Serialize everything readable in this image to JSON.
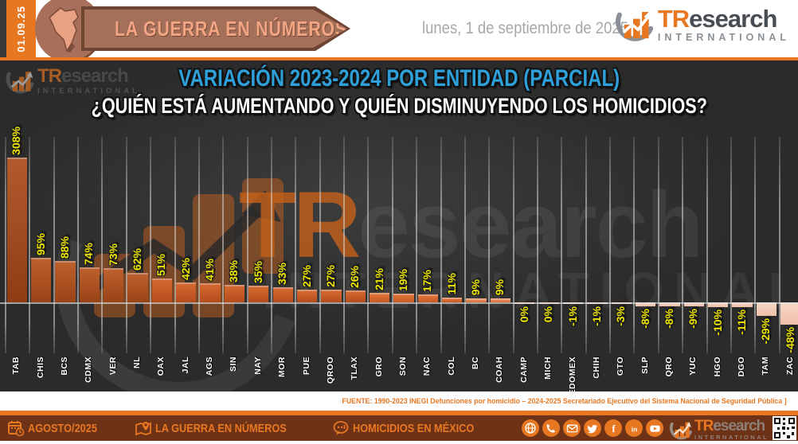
{
  "header": {
    "side_date": "01.09.25",
    "banner_title": "LA GUERRA EN NÚMEROS",
    "date_line": "lunes, 1 de septiembre de 2025",
    "brand": {
      "tr": "TR",
      "rest": "esearch",
      "sub": "INTERNATIONAL"
    }
  },
  "chart_data": {
    "type": "bar",
    "title": "VARIACIÓN 2023-2024 POR ENTIDAD (PARCIAL)",
    "subtitle": "¿QUIÉN ESTÁ AUMENTANDO Y QUIÉN DISMINUYENDO LOS HOMICIDIOS?",
    "categories": [
      "TAB",
      "CHIS",
      "BCS",
      "CDMX",
      "VER",
      "NL",
      "OAX",
      "JAL",
      "AGS",
      "SIN",
      "NAY",
      "MOR",
      "PUE",
      "QROO",
      "TLAX",
      "GRO",
      "SON",
      "NAC",
      "COL",
      "BC",
      "COAH",
      "CAMP",
      "MICH",
      "EDOMEX",
      "CHIH",
      "GTO",
      "SLP",
      "QRO",
      "YUC",
      "HGO",
      "DGO",
      "TAM",
      "ZAC"
    ],
    "values": [
      308,
      95,
      88,
      74,
      73,
      62,
      51,
      42,
      41,
      38,
      35,
      33,
      27,
      27,
      26,
      21,
      19,
      17,
      11,
      9,
      9,
      0,
      0,
      -1,
      -1,
      -3,
      -8,
      -8,
      -9,
      -10,
      -11,
      -29,
      -48
    ],
    "unit": "%",
    "ylim": [
      -60,
      320
    ],
    "grid": "vertical",
    "value_label_color": "#ece400",
    "category_label_color": "#ffffff",
    "palette": {
      "p200": [
        "#b25a2e",
        "#8f3c14"
      ],
      "p60": [
        "#bd5f2e",
        "#9a4316"
      ],
      "p25": [
        "#d4682f",
        "#b34c1c"
      ],
      "p10": [
        "#de7136",
        "#c55a26"
      ],
      "p1": [
        "#e68a55",
        "#d4703c"
      ],
      "zero": "#f2c0a4",
      "neg": [
        "#f6d8c8",
        "#efc0a9"
      ]
    }
  },
  "source": "FUENTE: 1990-2023 INEGI Defunciones por homicidio – 2024-2025 Secretariado Ejecutivo del Sistema Nacional de Seguridad Pública ]",
  "footer": {
    "period": "AGOSTO/2025",
    "section": "LA GUERRA EN NÚMEROS",
    "topic": "HOMICIDIOS EN MÉXICO",
    "social_icons": [
      "website-icon",
      "phone-icon",
      "email-icon",
      "twitter-icon",
      "facebook-icon",
      "linkedin-icon",
      "youtube-icon"
    ],
    "qr": "qr-code"
  },
  "colors": {
    "accent": "#e87722",
    "title_blue": "#2f9fd9",
    "chart_bg": "#2e2e2e",
    "footer_bg": "#6e3217",
    "banner_fill": "#a5705a",
    "banner_text": "#f2a483"
  }
}
